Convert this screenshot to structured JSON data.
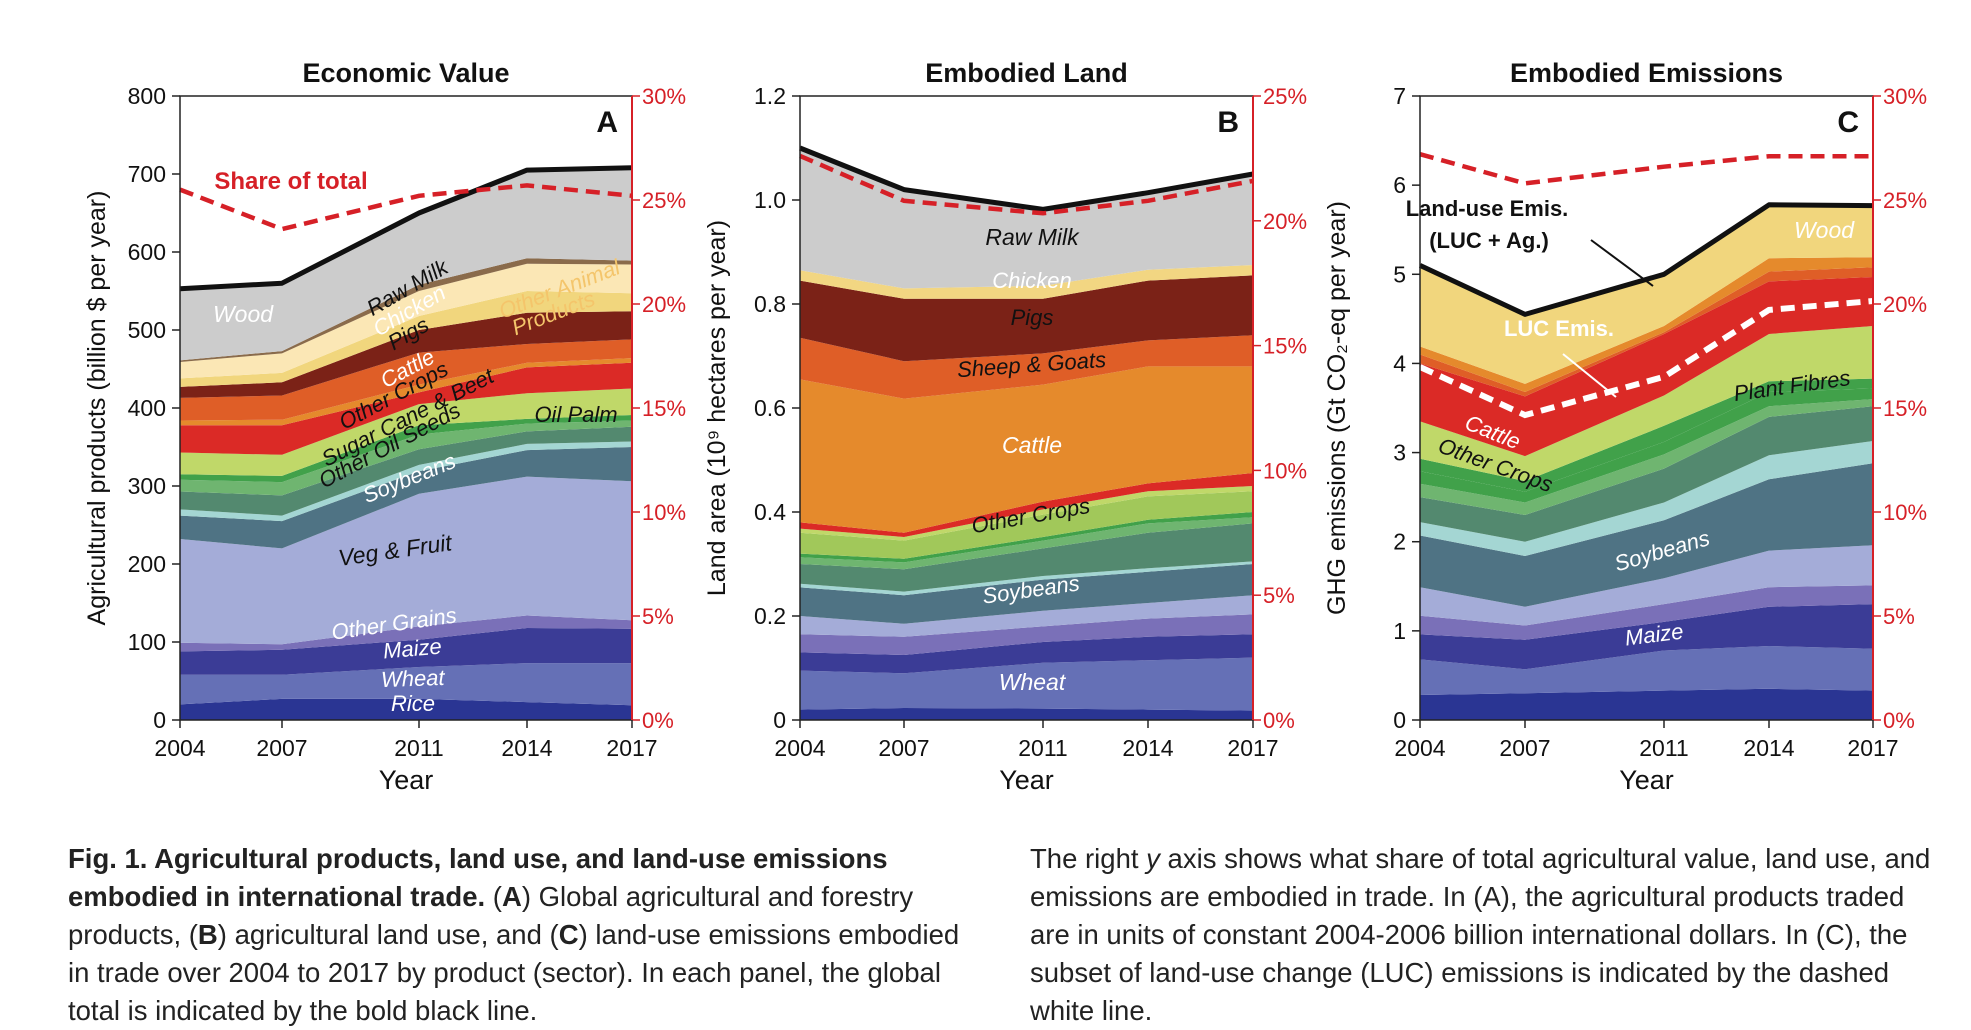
{
  "figure": {
    "x_axis_label": "Year",
    "caption": {
      "lead": "Fig. 1. Agricultural products, land use, and land-use emissions embodied in international trade.",
      "left_parts": [
        {
          "t": " (",
          "s": ""
        },
        {
          "t": "A",
          "s": "b"
        },
        {
          "t": ") Global agricultural and forestry products, (",
          "s": ""
        },
        {
          "t": "B",
          "s": "b"
        },
        {
          "t": ") agricultural land use, and (",
          "s": ""
        },
        {
          "t": "C",
          "s": "b"
        },
        {
          "t": ") land-use emissions embodied in trade over 2004 to 2017 by product (sector). In each panel, the global total is indicated by the bold black line.",
          "s": ""
        }
      ],
      "right_parts": [
        {
          "t": "The right ",
          "s": ""
        },
        {
          "t": "y",
          "s": "i"
        },
        {
          "t": " axis shows what share of total agricultural value, land use, and emissions are embodied in trade. In (A), the agricultural products traded are in units of constant 2004-2006 billion international dollars. In (C), the subset of land-use change (LUC) emissions is indicated by the dashed white line.",
          "s": ""
        }
      ]
    }
  },
  "chart_data": [
    {
      "type": "area",
      "panel": "A",
      "title": "Economic Value",
      "xlabel": "Year",
      "ylabel": "Agricultural products (billion $ per year)",
      "x": [
        2004,
        2007,
        2011,
        2014,
        2017
      ],
      "xticks": [
        "2004",
        "2007",
        "2011",
        "2014",
        "2017"
      ],
      "ylim": [
        0,
        800
      ],
      "yticks": [
        "0",
        "100",
        "200",
        "300",
        "400",
        "500",
        "600",
        "700",
        "800"
      ],
      "y2lim": [
        0,
        30
      ],
      "y2ticks": [
        "0%",
        "5%",
        "10%",
        "15%",
        "20%",
        "25%",
        "30%"
      ],
      "stack_tops": [
        [
          20,
          27,
          27,
          23,
          19
        ],
        [
          58,
          58,
          68,
          73,
          73
        ],
        [
          88,
          90,
          103,
          118,
          117
        ],
        [
          99,
          97,
          120,
          134,
          128
        ],
        [
          232,
          220,
          290,
          312,
          306
        ],
        [
          262,
          255,
          319,
          346,
          350
        ],
        [
          270,
          262,
          327,
          354,
          357
        ],
        [
          293,
          288,
          347,
          370,
          376
        ],
        [
          308,
          305,
          366,
          380,
          384
        ],
        [
          315,
          313,
          378,
          386,
          391
        ],
        [
          343,
          340,
          405,
          419,
          425
        ],
        [
          378,
          378,
          420,
          452,
          458
        ],
        [
          384,
          385,
          430,
          458,
          464
        ],
        [
          413,
          416,
          471,
          482,
          488
        ],
        [
          427,
          433,
          500,
          522,
          524
        ],
        [
          438,
          445,
          518,
          550,
          547
        ],
        [
          459,
          470,
          550,
          585,
          584
        ],
        [
          461,
          473,
          558,
          592,
          589
        ],
        [
          550,
          558,
          648,
          704,
          707
        ]
      ],
      "total": [
        553,
        560,
        650,
        705,
        708
      ],
      "share": [
        25.5,
        23.6,
        25.2,
        25.7,
        25.2
      ],
      "labels": [
        {
          "text": "Rice",
          "key": "rice"
        },
        {
          "text": "Wheat",
          "key": "wheat"
        },
        {
          "text": "Maize",
          "key": "maize"
        },
        {
          "text": "Other Grains",
          "key": "other-grains"
        },
        {
          "text": "Veg & Fruit",
          "key": "veg-fruit"
        },
        {
          "text": "Soybeans",
          "key": "soybeans"
        },
        {
          "text": "Oil Palm",
          "key": "oil-palm"
        },
        {
          "text": "Other Oil Seeds",
          "key": "other-oil-seeds"
        },
        {
          "text": "Sugar Cane & Beet",
          "key": "sugar-cane-beet"
        },
        {
          "text": "Other Crops",
          "key": "other-crops"
        },
        {
          "text": "Cattle",
          "key": "cattle"
        },
        {
          "text": "Pigs",
          "key": "pigs"
        },
        {
          "text": "Chicken",
          "key": "chicken"
        },
        {
          "text": "Raw Milk",
          "key": "raw-milk"
        },
        {
          "text": "Other Animal",
          "key": "other-animal-1"
        },
        {
          "text": "Products",
          "key": "other-animal-2"
        },
        {
          "text": "Wood",
          "key": "wood"
        },
        {
          "text": "Share of total",
          "key": "share-of-total"
        }
      ]
    },
    {
      "type": "area",
      "panel": "B",
      "title": "Embodied Land",
      "xlabel": "Year",
      "ylabel": "Land area (10⁹ hectares per year)",
      "x": [
        2004,
        2007,
        2011,
        2014,
        2017
      ],
      "xticks": [
        "2004",
        "2007",
        "2011",
        "2014",
        "2017"
      ],
      "ylim": [
        0,
        1.2
      ],
      "yticks": [
        "0",
        "0.2",
        "0.4",
        "0.6",
        "0.8",
        "1.0",
        "1.2"
      ],
      "y2lim": [
        0,
        25
      ],
      "y2ticks": [
        "0%",
        "5%",
        "10%",
        "15%",
        "20%",
        "25%"
      ],
      "stack_tops": [
        [
          0.02,
          0.023,
          0.022,
          0.02,
          0.018
        ],
        [
          0.095,
          0.09,
          0.11,
          0.115,
          0.12
        ],
        [
          0.13,
          0.125,
          0.15,
          0.16,
          0.165
        ],
        [
          0.165,
          0.16,
          0.18,
          0.195,
          0.203
        ],
        [
          0.2,
          0.185,
          0.21,
          0.225,
          0.24
        ],
        [
          0.255,
          0.24,
          0.27,
          0.285,
          0.3
        ],
        [
          0.262,
          0.247,
          0.277,
          0.292,
          0.305
        ],
        [
          0.3,
          0.29,
          0.33,
          0.36,
          0.378
        ],
        [
          0.313,
          0.303,
          0.345,
          0.378,
          0.39
        ],
        [
          0.32,
          0.31,
          0.352,
          0.385,
          0.4
        ],
        [
          0.36,
          0.345,
          0.395,
          0.43,
          0.44
        ],
        [
          0.368,
          0.352,
          0.405,
          0.44,
          0.45
        ],
        [
          0.38,
          0.36,
          0.42,
          0.455,
          0.475
        ],
        [
          0.655,
          0.618,
          0.645,
          0.68,
          0.68
        ],
        [
          0.735,
          0.69,
          0.705,
          0.73,
          0.74
        ],
        [
          0.845,
          0.81,
          0.81,
          0.845,
          0.855
        ],
        [
          0.865,
          0.83,
          0.835,
          0.866,
          0.875
        ],
        [
          1.1,
          1.02,
          0.982,
          1.014,
          1.05
        ]
      ],
      "total": [
        1.1,
        1.02,
        0.982,
        1.014,
        1.05
      ],
      "share": [
        22.6,
        20.8,
        20.3,
        20.8,
        21.6
      ],
      "labels": [
        {
          "text": "Wheat",
          "key": "wheat"
        },
        {
          "text": "Soybeans",
          "key": "soybeans"
        },
        {
          "text": "Other Crops",
          "key": "other-crops"
        },
        {
          "text": "Cattle",
          "key": "cattle"
        },
        {
          "text": "Sheep & Goats",
          "key": "sheep-goats"
        },
        {
          "text": "Pigs",
          "key": "pigs"
        },
        {
          "text": "Chicken",
          "key": "chicken"
        },
        {
          "text": "Raw Milk",
          "key": "raw-milk"
        }
      ]
    },
    {
      "type": "area",
      "panel": "C",
      "title": "Embodied Emissions",
      "xlabel": "Year",
      "ylabel": "GHG emissions (Gt CO₂-eq per year)",
      "x": [
        2004,
        2007,
        2011,
        2014,
        2017
      ],
      "xticks": [
        "2004",
        "2007",
        "2011",
        "2014",
        "2017"
      ],
      "ylim": [
        0,
        7
      ],
      "yticks": [
        "0",
        "1",
        "2",
        "3",
        "4",
        "5",
        "6",
        "7"
      ],
      "y2lim": [
        0,
        30
      ],
      "y2ticks": [
        "0%",
        "5%",
        "10%",
        "15%",
        "20%",
        "25%",
        "30%"
      ],
      "stack_tops": [
        [
          0.28,
          0.3,
          0.33,
          0.35,
          0.33
        ],
        [
          0.68,
          0.57,
          0.78,
          0.83,
          0.8
        ],
        [
          0.96,
          0.9,
          1.1,
          1.27,
          1.3
        ],
        [
          1.17,
          1.06,
          1.3,
          1.49,
          1.51
        ],
        [
          1.49,
          1.27,
          1.59,
          1.9,
          1.96
        ],
        [
          2.07,
          1.84,
          2.24,
          2.7,
          2.88
        ],
        [
          2.22,
          2.0,
          2.44,
          2.97,
          3.13
        ],
        [
          2.5,
          2.3,
          2.82,
          3.4,
          3.52
        ],
        [
          2.65,
          2.44,
          2.98,
          3.52,
          3.6
        ],
        [
          2.79,
          2.56,
          3.12,
          3.68,
          3.72
        ],
        [
          2.93,
          2.68,
          3.3,
          3.8,
          3.83
        ],
        [
          3.35,
          2.96,
          3.64,
          4.33,
          4.42
        ],
        [
          4.0,
          3.63,
          4.33,
          4.92,
          4.97
        ],
        [
          4.1,
          3.68,
          4.35,
          5.03,
          5.08
        ],
        [
          4.19,
          3.77,
          4.42,
          5.18,
          5.19
        ],
        [
          5.08,
          4.55,
          4.99,
          5.78,
          5.76
        ]
      ],
      "total": [
        5.1,
        4.55,
        5.0,
        5.78,
        5.77
      ],
      "luc": [
        3.96,
        3.42,
        3.85,
        4.6,
        4.7
      ],
      "share": [
        27.2,
        25.8,
        26.6,
        27.1,
        27.1
      ],
      "labels": [
        {
          "text": "Maize",
          "key": "maize"
        },
        {
          "text": "Soybeans",
          "key": "soybeans"
        },
        {
          "text": "Other Crops",
          "key": "other-crops"
        },
        {
          "text": "Cattle",
          "key": "cattle"
        },
        {
          "text": "Plant Fibres",
          "key": "plant-fibres"
        },
        {
          "text": "Wood",
          "key": "wood"
        },
        {
          "text": "Land-use Emis.",
          "key": "land-use-emis-1"
        },
        {
          "text": "(LUC + Ag.)",
          "key": "land-use-emis-2"
        },
        {
          "text": "LUC Emis.",
          "key": "luc-emis"
        }
      ]
    }
  ],
  "colors": {
    "A": [
      "#2a3593",
      "#6570b6",
      "#3b3c96",
      "#7a70b8",
      "#a4acd8",
      "#4f7384",
      "#a4d6d3",
      "#53896f",
      "#6fb570",
      "#41a14a",
      "#c0d869",
      "#db2a26",
      "#e58a2c",
      "#df5e27",
      "#7b2217",
      "#f1d67d",
      "#fbe7b5",
      "#8a6b4b"
    ],
    "B": [
      "#2a3593",
      "#6570b6",
      "#3b3c96",
      "#7a70b8",
      "#a4acd8",
      "#4f7384",
      "#a4d6d3",
      "#53896f",
      "#6fb570",
      "#41a14a",
      "#a1c85a",
      "#c0d869",
      "#db2a26",
      "#e58a2c",
      "#df5e27",
      "#7b2217",
      "#f2d682"
    ],
    "C": [
      "#2a3593",
      "#6570b6",
      "#3b3c96",
      "#7a70b8",
      "#a4acd8",
      "#4f7384",
      "#a4d6d3",
      "#53896f",
      "#6fb570",
      "#41a14a",
      "#41a14a",
      "#c0d869",
      "#db2a26",
      "#df5e27",
      "#e58a2c",
      "#f1d67d",
      "#8a6b4b"
    ],
    "share_line": "#d62027",
    "total_line": "#111111"
  }
}
